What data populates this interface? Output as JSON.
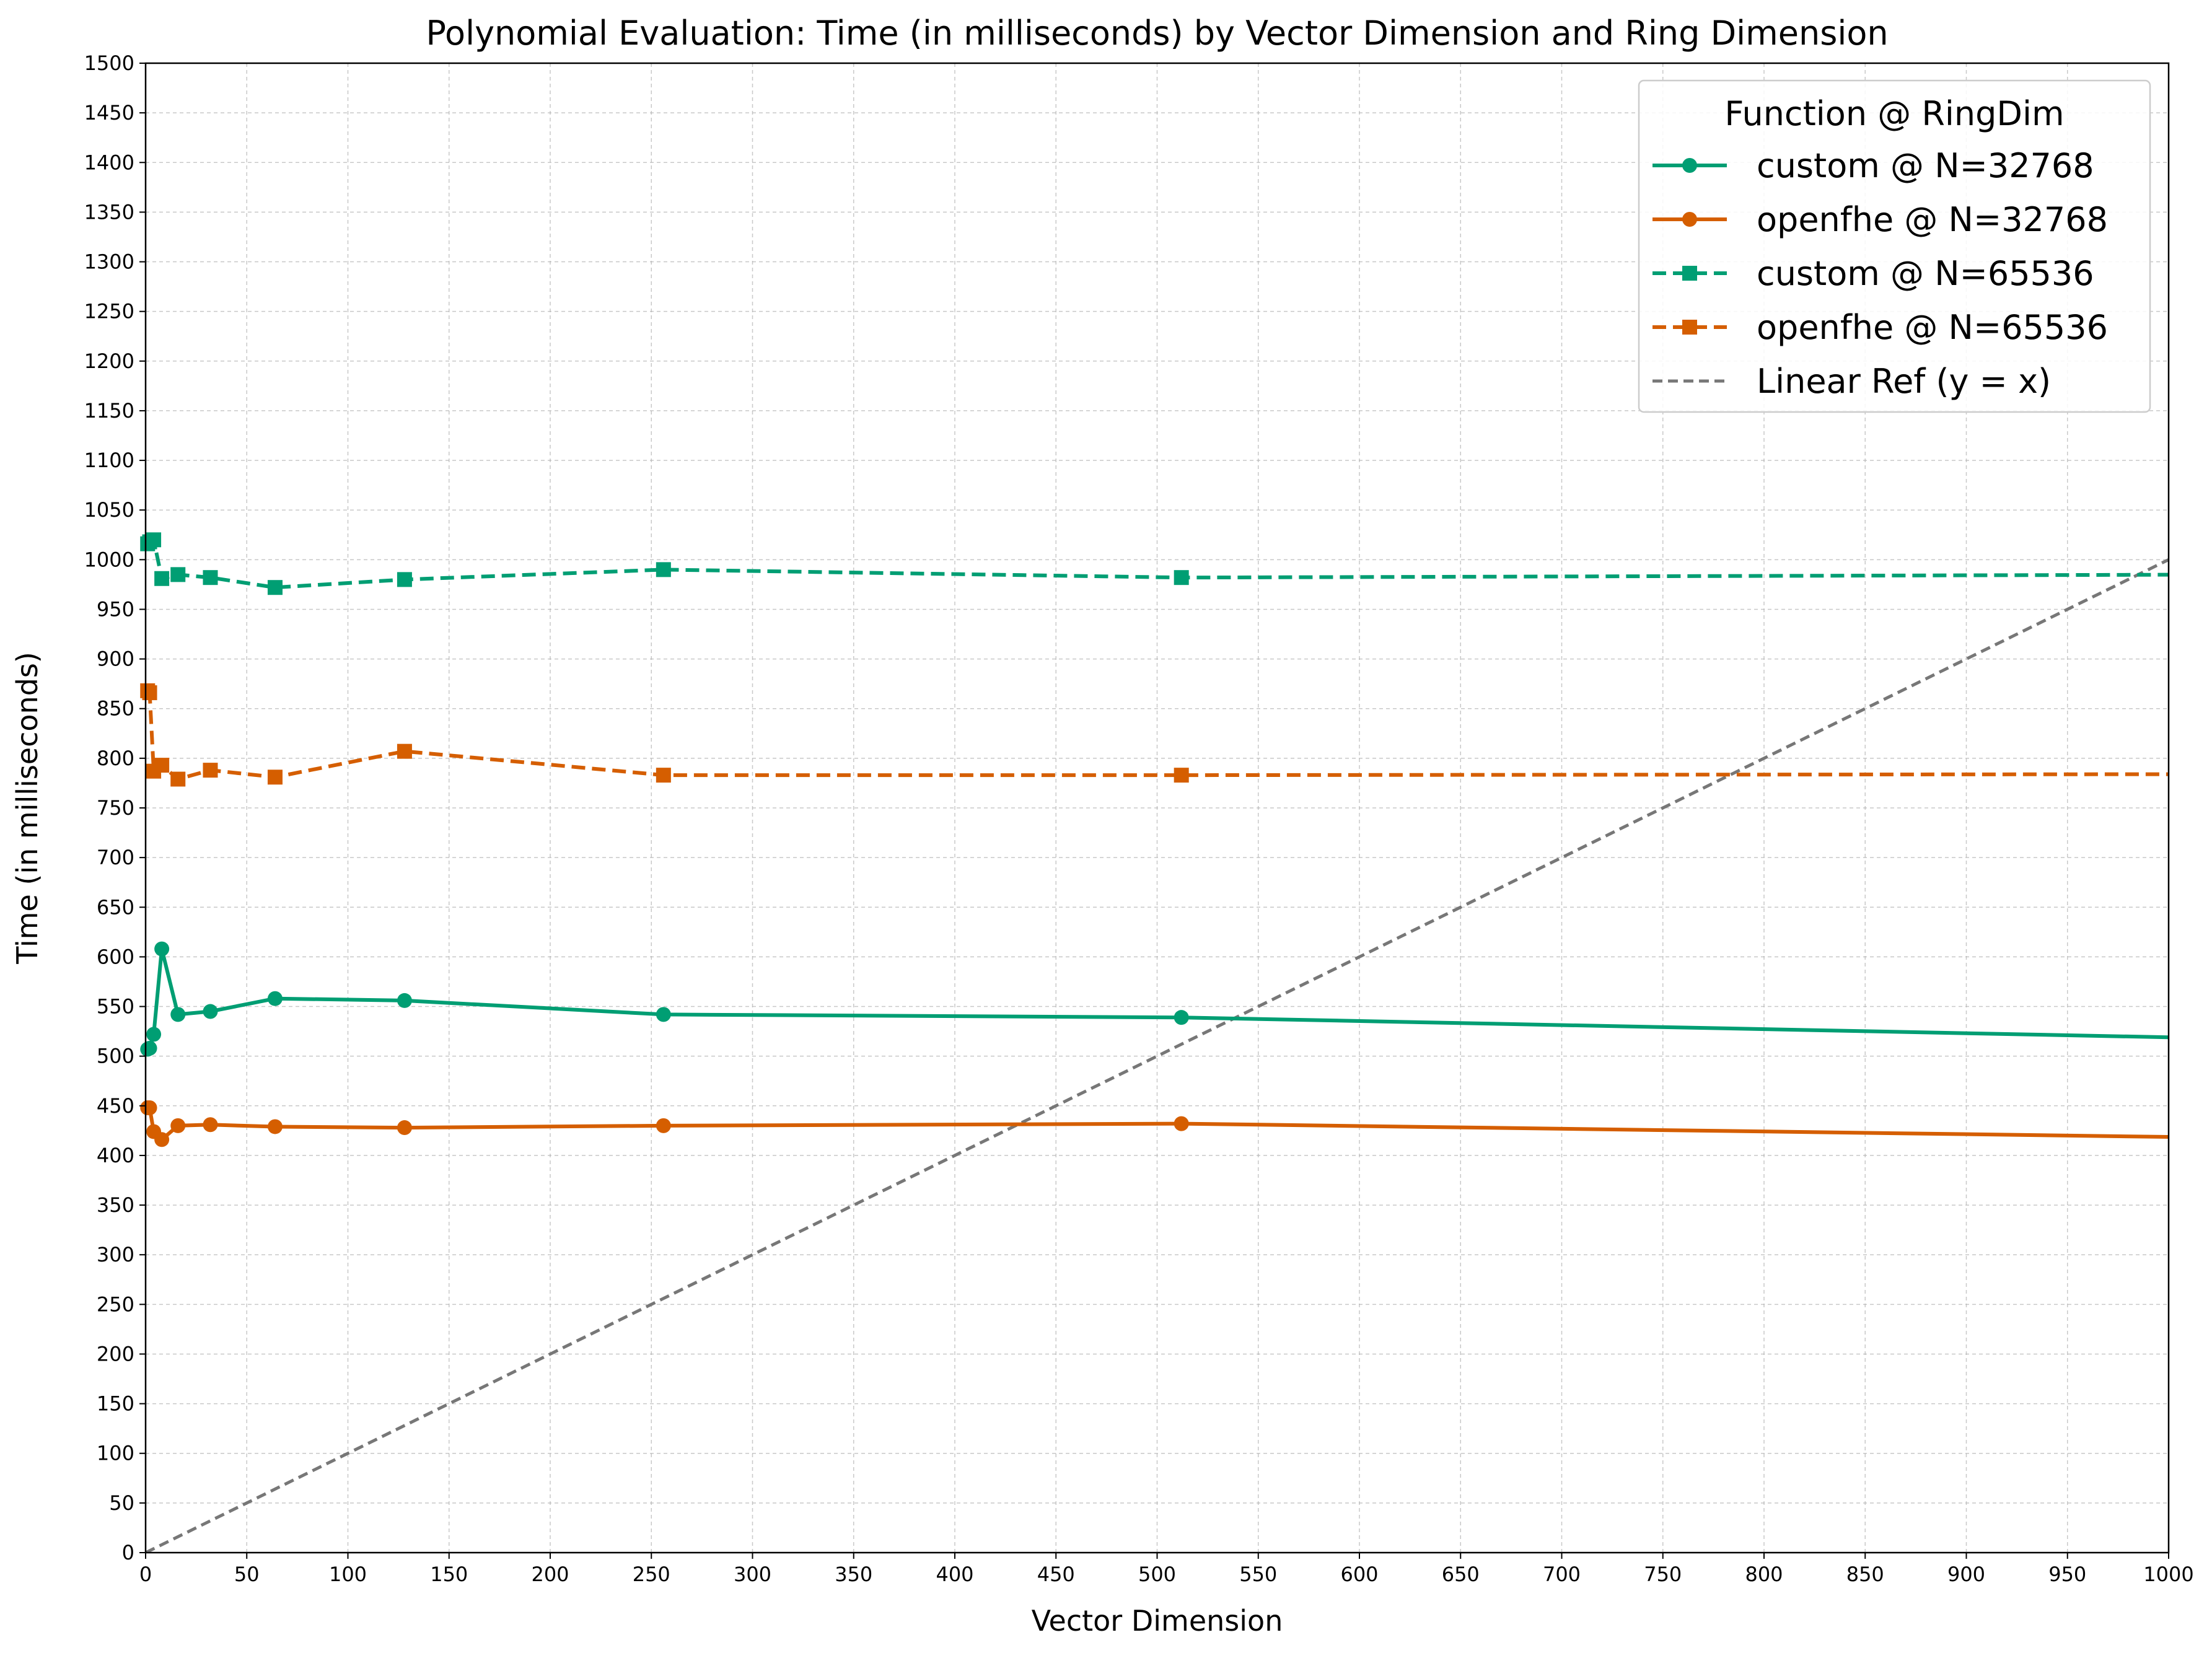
{
  "chart_data": {
    "type": "line",
    "title": "Polynomial Evaluation: Time (in milliseconds) by Vector Dimension and Ring Dimension",
    "xlabel": "Vector Dimension",
    "ylabel": "Time (in milliseconds)",
    "xlim": [
      0,
      1000
    ],
    "ylim": [
      0,
      1500
    ],
    "x_ticks": [
      0,
      50,
      100,
      150,
      200,
      250,
      300,
      350,
      400,
      450,
      500,
      550,
      600,
      650,
      700,
      750,
      800,
      850,
      900,
      950,
      1000
    ],
    "y_ticks": [
      0,
      50,
      100,
      150,
      200,
      250,
      300,
      350,
      400,
      450,
      500,
      550,
      600,
      650,
      700,
      750,
      800,
      850,
      900,
      950,
      1000,
      1050,
      1100,
      1150,
      1200,
      1250,
      1300,
      1350,
      1400,
      1450,
      1500
    ],
    "grid": true,
    "legend": {
      "title": "Function @ RingDim",
      "placement": "top-right"
    },
    "x": [
      1,
      2,
      4,
      8,
      16,
      32,
      64,
      128,
      256,
      512,
      1024
    ],
    "series": [
      {
        "name": "custom @ N=32768",
        "color": "#009E73",
        "line_style": "solid",
        "marker": "circle",
        "values": [
          507,
          508,
          522,
          608,
          542,
          545,
          558,
          556,
          542,
          539,
          518
        ]
      },
      {
        "name": "openfhe @ N=32768",
        "color": "#D55E00",
        "line_style": "solid",
        "marker": "circle",
        "values": [
          448,
          448,
          424,
          416,
          430,
          431,
          429,
          428,
          430,
          432,
          418
        ]
      },
      {
        "name": "custom @ N=65536",
        "color": "#009E73",
        "line_style": "dashed",
        "marker": "square",
        "values": [
          1016,
          1018,
          1020,
          981,
          985,
          982,
          972,
          980,
          990,
          982,
          985
        ]
      },
      {
        "name": "openfhe @ N=65536",
        "color": "#D55E00",
        "line_style": "dashed",
        "marker": "square",
        "values": [
          868,
          866,
          787,
          793,
          779,
          788,
          781,
          807,
          783,
          783,
          784
        ]
      }
    ],
    "reference_line": {
      "name": "Linear Ref (y = x)",
      "color": "#777777",
      "line_style": "dashed",
      "x": [
        0,
        1000
      ],
      "y": [
        0,
        1000
      ]
    }
  }
}
